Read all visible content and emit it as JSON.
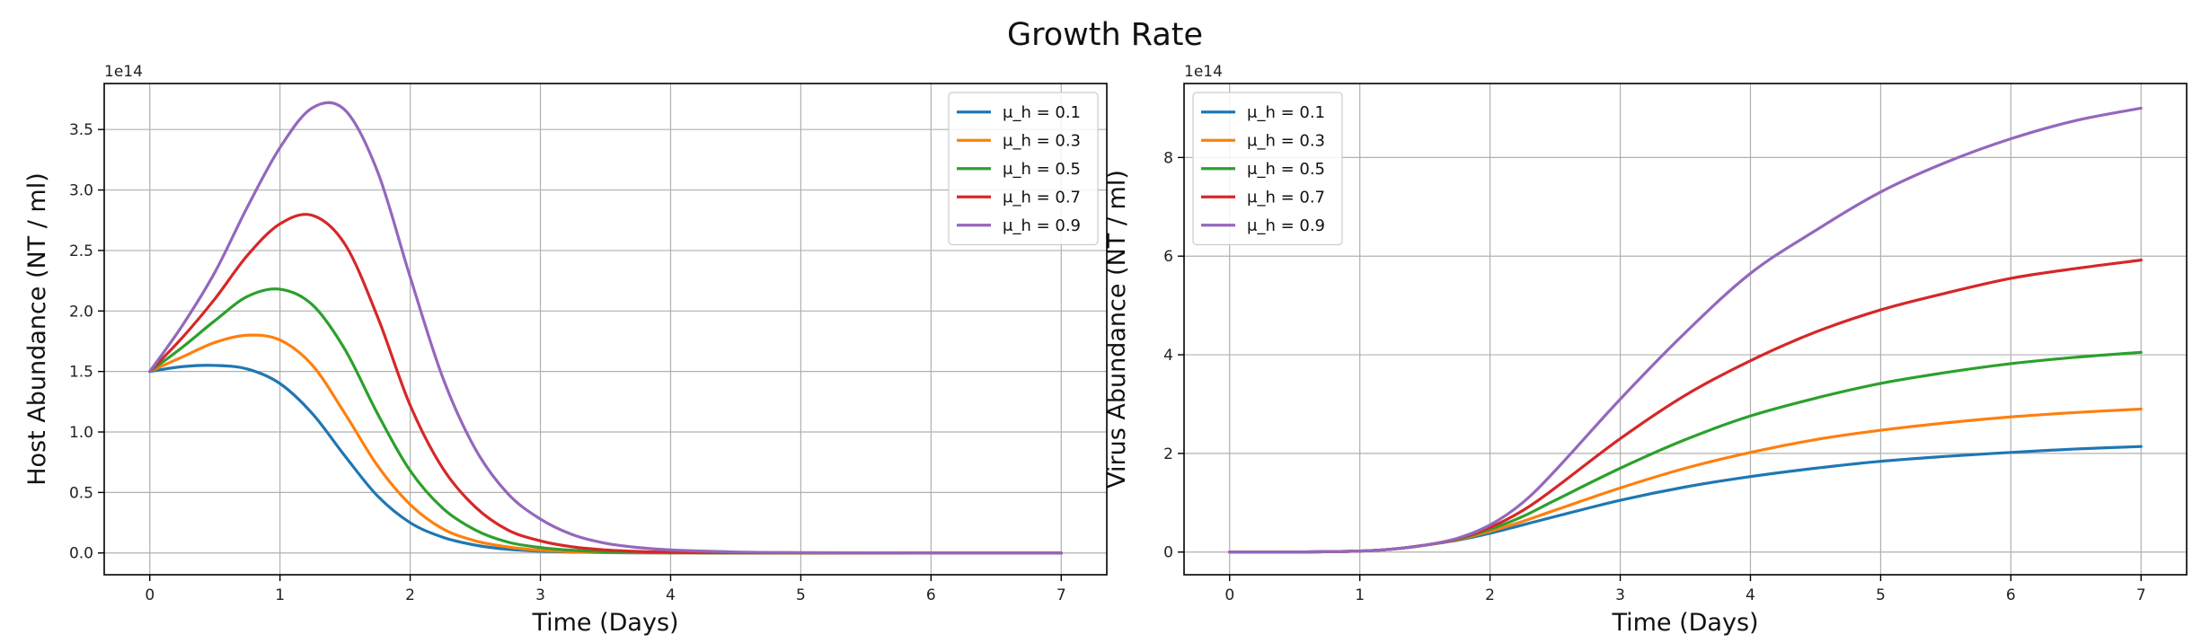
{
  "figure": {
    "title": "Growth Rate"
  },
  "chart_data": [
    {
      "type": "line",
      "title": "",
      "xlabel": "Time (Days)",
      "ylabel": "Host Abundance (NT / ml)",
      "offset_text": "1e14",
      "xlim": [
        -0.35,
        7.35
      ],
      "ylim": [
        -0.18,
        3.88
      ],
      "xticks": [
        0,
        1,
        2,
        3,
        4,
        5,
        6,
        7
      ],
      "xtick_labels": [
        "0",
        "1",
        "2",
        "3",
        "4",
        "5",
        "6",
        "7"
      ],
      "yticks": [
        0,
        0.5,
        1.0,
        1.5,
        2.0,
        2.5,
        3.0,
        3.5
      ],
      "ytick_labels": [
        "0.0",
        "0.5",
        "1.0",
        "1.5",
        "2.0",
        "2.5",
        "3.0",
        "3.5"
      ],
      "grid": true,
      "legend_position": "upper right",
      "x": [
        0,
        0.25,
        0.5,
        0.75,
        1.0,
        1.25,
        1.5,
        1.75,
        2.0,
        2.25,
        2.5,
        2.75,
        3.0,
        3.25,
        3.5,
        3.75,
        4.0,
        4.5,
        5.0,
        5.5,
        6.0,
        6.5,
        7.0
      ],
      "series": [
        {
          "name": "μ_h = 0.1",
          "color": "#1f77b4",
          "values": [
            1.5,
            1.54,
            1.55,
            1.52,
            1.4,
            1.15,
            0.8,
            0.47,
            0.25,
            0.13,
            0.065,
            0.03,
            0.015,
            0.007,
            0.003,
            0.001,
            0.0005,
            0,
            0,
            0,
            0,
            0,
            0
          ]
        },
        {
          "name": "μ_h = 0.3",
          "color": "#ff7f0e",
          "values": [
            1.5,
            1.62,
            1.74,
            1.8,
            1.76,
            1.55,
            1.15,
            0.72,
            0.4,
            0.2,
            0.1,
            0.05,
            0.022,
            0.01,
            0.005,
            0.002,
            0.001,
            0,
            0,
            0,
            0,
            0,
            0
          ]
        },
        {
          "name": "μ_h = 0.5",
          "color": "#2ca02c",
          "values": [
            1.5,
            1.7,
            1.92,
            2.12,
            2.18,
            2.05,
            1.68,
            1.15,
            0.68,
            0.37,
            0.19,
            0.09,
            0.045,
            0.022,
            0.01,
            0.005,
            0.002,
            0.0005,
            0,
            0,
            0,
            0,
            0
          ]
        },
        {
          "name": "μ_h = 0.7",
          "color": "#d62728",
          "values": [
            1.5,
            1.78,
            2.1,
            2.46,
            2.72,
            2.79,
            2.55,
            1.95,
            1.22,
            0.7,
            0.38,
            0.19,
            0.1,
            0.05,
            0.025,
            0.012,
            0.006,
            0.0015,
            0.0005,
            0,
            0,
            0,
            0
          ]
        },
        {
          "name": "μ_h = 0.9",
          "color": "#9467bd",
          "values": [
            1.5,
            1.88,
            2.32,
            2.86,
            3.35,
            3.68,
            3.66,
            3.15,
            2.28,
            1.45,
            0.86,
            0.49,
            0.28,
            0.15,
            0.08,
            0.045,
            0.025,
            0.008,
            0.003,
            0.001,
            0,
            0,
            0
          ]
        }
      ]
    },
    {
      "type": "line",
      "title": "",
      "xlabel": "Time (Days)",
      "ylabel": "Virus Abundance (NT / ml)",
      "offset_text": "1e14",
      "xlim": [
        -0.35,
        7.35
      ],
      "ylim": [
        -0.46,
        9.5
      ],
      "xticks": [
        0,
        1,
        2,
        3,
        4,
        5,
        6,
        7
      ],
      "xtick_labels": [
        "0",
        "1",
        "2",
        "3",
        "4",
        "5",
        "6",
        "7"
      ],
      "yticks": [
        0,
        2,
        4,
        6,
        8
      ],
      "ytick_labels": [
        "0",
        "2",
        "4",
        "6",
        "8"
      ],
      "grid": true,
      "legend_position": "upper left",
      "x": [
        0,
        0.5,
        1.0,
        1.25,
        1.5,
        1.75,
        2.0,
        2.25,
        2.5,
        3.0,
        3.5,
        4.0,
        4.5,
        5.0,
        5.5,
        6.0,
        6.5,
        7.0
      ],
      "series": [
        {
          "name": "μ_h = 0.1",
          "color": "#1f77b4",
          "values": [
            0,
            0,
            0.02,
            0.06,
            0.14,
            0.24,
            0.38,
            0.55,
            0.72,
            1.05,
            1.32,
            1.53,
            1.7,
            1.84,
            1.94,
            2.02,
            2.09,
            2.14
          ]
        },
        {
          "name": "μ_h = 0.3",
          "color": "#ff7f0e",
          "values": [
            0,
            0,
            0.02,
            0.06,
            0.14,
            0.25,
            0.42,
            0.62,
            0.85,
            1.3,
            1.7,
            2.02,
            2.28,
            2.47,
            2.62,
            2.74,
            2.83,
            2.9
          ]
        },
        {
          "name": "μ_h = 0.5",
          "color": "#2ca02c",
          "values": [
            0,
            0,
            0.02,
            0.06,
            0.14,
            0.26,
            0.46,
            0.72,
            1.05,
            1.7,
            2.28,
            2.76,
            3.12,
            3.42,
            3.64,
            3.82,
            3.95,
            4.05
          ]
        },
        {
          "name": "μ_h = 0.7",
          "color": "#d62728",
          "values": [
            0,
            0,
            0.02,
            0.06,
            0.14,
            0.27,
            0.5,
            0.84,
            1.3,
            2.3,
            3.18,
            3.88,
            4.46,
            4.91,
            5.25,
            5.55,
            5.75,
            5.92
          ]
        },
        {
          "name": "μ_h = 0.9",
          "color": "#9467bd",
          "values": [
            0,
            0,
            0.02,
            0.06,
            0.14,
            0.28,
            0.55,
            1.0,
            1.65,
            3.1,
            4.45,
            5.65,
            6.52,
            7.3,
            7.9,
            8.38,
            8.75,
            9.0
          ]
        }
      ]
    }
  ]
}
